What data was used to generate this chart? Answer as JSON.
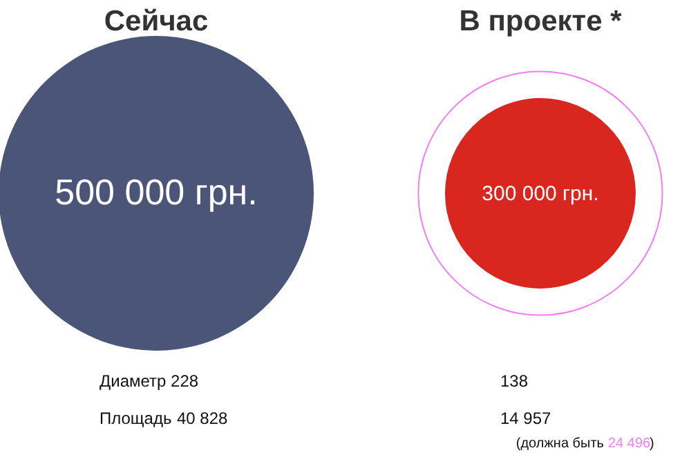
{
  "chart_data": {
    "type": "other",
    "categories": [
      "Сейчас",
      "В проекте *"
    ],
    "series": [
      {
        "colors": [
          "#4a5577",
          "#d9261f"
        ],
        "values": [
          40828,
          14957
        ],
        "value_labels": [
          "40 828",
          "14 957"
        ]
      },
      {
        "color": "#f07ef0",
        "values": [
          null,
          24496
        ],
        "value_labels": [
          null,
          "24 496"
        ]
      }
    ],
    "annotations": [
      "500 000 грн.",
      "300 000 грн.",
      "Диаметр 228",
      "138",
      "Площадь",
      "(должна быть",
      ")"
    ]
  }
}
